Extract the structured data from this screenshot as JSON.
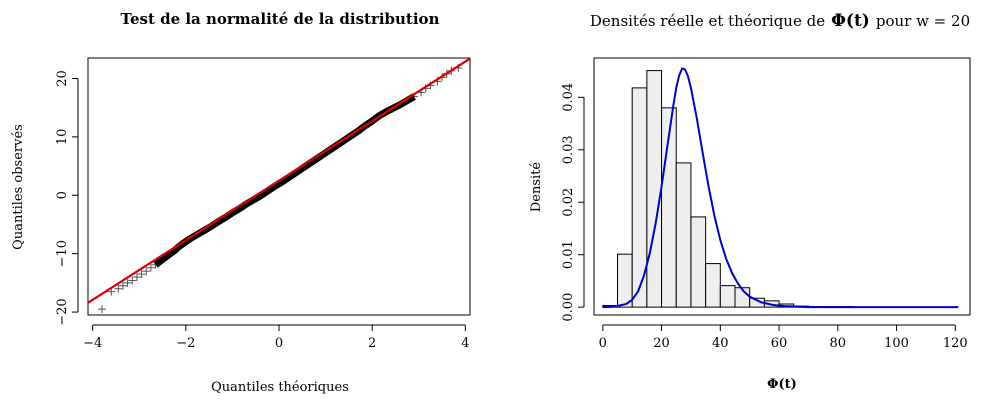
{
  "chart_data": [
    {
      "type": "scatter",
      "title": "Test de la normalité de la distribution",
      "xlabel": "Quantiles théoriques",
      "ylabel": "Quantiles observés",
      "xlim": [
        -4.1,
        4.1
      ],
      "ylim": [
        -20.5,
        23.5
      ],
      "xticks": [
        -4,
        -2,
        0,
        2,
        4
      ],
      "yticks": [
        -20,
        -10,
        0,
        10,
        20
      ],
      "xtick_labels": [
        "−4",
        "−2",
        "0",
        "2",
        "4"
      ],
      "ytick_labels": [
        "−20",
        "−10",
        "0",
        "10",
        "20"
      ],
      "marker": "+",
      "point_color": "#555555",
      "line": {
        "label": "",
        "intercept": 2.5,
        "slope": 5.1,
        "color": "#dd0000"
      },
      "points": [
        [
          -3.8,
          -19.5
        ],
        [
          -3.6,
          -16.5
        ],
        [
          -3.45,
          -16.0
        ],
        [
          -3.35,
          -15.5
        ],
        [
          -3.25,
          -15.0
        ],
        [
          -3.15,
          -14.6
        ],
        [
          -3.05,
          -14.0
        ],
        [
          -2.95,
          -13.5
        ],
        [
          -2.85,
          -13.0
        ],
        [
          -2.75,
          -12.4
        ],
        [
          -2.65,
          -11.9
        ],
        [
          -2.55,
          -11.3
        ],
        [
          -2.45,
          -10.7
        ],
        [
          -2.35,
          -10.1
        ],
        [
          -2.25,
          -9.5
        ],
        [
          -2.15,
          -8.8
        ],
        [
          -2.05,
          -8.2
        ],
        [
          -1.9,
          -7.4
        ],
        [
          -1.75,
          -6.7
        ],
        [
          -1.6,
          -6.0
        ],
        [
          -1.45,
          -5.3
        ],
        [
          -1.3,
          -4.5
        ],
        [
          -1.15,
          -3.8
        ],
        [
          -1.0,
          -3.0
        ],
        [
          -0.85,
          -2.3
        ],
        [
          -0.7,
          -1.5
        ],
        [
          -0.55,
          -0.8
        ],
        [
          -0.4,
          -0.1
        ],
        [
          -0.25,
          0.7
        ],
        [
          -0.1,
          1.5
        ],
        [
          0.05,
          2.2
        ],
        [
          0.2,
          3.0
        ],
        [
          0.35,
          3.8
        ],
        [
          0.5,
          4.6
        ],
        [
          0.65,
          5.4
        ],
        [
          0.8,
          6.2
        ],
        [
          0.95,
          7.0
        ],
        [
          1.1,
          7.8
        ],
        [
          1.25,
          8.6
        ],
        [
          1.4,
          9.4
        ],
        [
          1.55,
          10.2
        ],
        [
          1.7,
          11.0
        ],
        [
          1.85,
          11.9
        ],
        [
          2.0,
          12.7
        ],
        [
          2.15,
          13.6
        ],
        [
          2.3,
          14.3
        ],
        [
          2.45,
          14.9
        ],
        [
          2.6,
          15.5
        ],
        [
          2.75,
          16.2
        ],
        [
          2.9,
          16.9
        ],
        [
          3.05,
          17.6
        ],
        [
          3.15,
          18.3
        ],
        [
          3.25,
          18.8
        ],
        [
          3.4,
          19.5
        ],
        [
          3.5,
          20.2
        ],
        [
          3.6,
          20.8
        ],
        [
          3.7,
          21.3
        ],
        [
          3.85,
          21.8
        ]
      ]
    },
    {
      "type": "bar",
      "title": "Densités réelle et théorique de",
      "title_math": "Φ(t)",
      "title_suffix": "pour w = 20",
      "xlabel": "Φ(t)",
      "ylabel": "Densité",
      "xlim": [
        -3,
        125
      ],
      "ylim": [
        -0.0015,
        0.0475
      ],
      "xticks": [
        0,
        20,
        40,
        60,
        80,
        100,
        120
      ],
      "xtick_labels": [
        "0",
        "20",
        "40",
        "60",
        "80",
        "100",
        "120"
      ],
      "yticks": [
        0,
        0.01,
        0.02,
        0.03,
        0.04
      ],
      "ytick_labels": [
        "0.00",
        "0.01",
        "0.02",
        "0.03",
        "0.04"
      ],
      "bar_fill": "#eeeeee",
      "bins": [
        [
          0,
          5,
          0.0003
        ],
        [
          5,
          10,
          0.0101
        ],
        [
          10,
          15,
          0.0418
        ],
        [
          15,
          20,
          0.0451
        ],
        [
          20,
          25,
          0.038
        ],
        [
          25,
          30,
          0.0275
        ],
        [
          30,
          35,
          0.0172
        ],
        [
          35,
          40,
          0.0083
        ],
        [
          40,
          45,
          0.0041
        ],
        [
          45,
          50,
          0.0037
        ],
        [
          50,
          55,
          0.0017
        ],
        [
          55,
          60,
          0.0012
        ],
        [
          60,
          65,
          0.0006
        ],
        [
          65,
          70,
          0.0002
        ],
        [
          70,
          75,
          0.0001
        ],
        [
          75,
          80,
          0.0001
        ],
        [
          80,
          85,
          0.0001
        ]
      ],
      "curve": {
        "label": "",
        "color": "#0000cc",
        "points": [
          [
            0,
            0.0
          ],
          [
            4,
            0.0001
          ],
          [
            8,
            0.0006
          ],
          [
            10,
            0.0014
          ],
          [
            12,
            0.003
          ],
          [
            14,
            0.006
          ],
          [
            16,
            0.0103
          ],
          [
            18,
            0.016
          ],
          [
            20,
            0.023
          ],
          [
            22,
            0.0308
          ],
          [
            24,
            0.0384
          ],
          [
            25,
            0.0418
          ],
          [
            26,
            0.0442
          ],
          [
            27,
            0.0455
          ],
          [
            28,
            0.0453
          ],
          [
            29,
            0.044
          ],
          [
            30,
            0.0418
          ],
          [
            32,
            0.036
          ],
          [
            34,
            0.0294
          ],
          [
            36,
            0.023
          ],
          [
            38,
            0.0174
          ],
          [
            40,
            0.0128
          ],
          [
            42,
            0.0092
          ],
          [
            44,
            0.0065
          ],
          [
            46,
            0.0045
          ],
          [
            48,
            0.003
          ],
          [
            50,
            0.002
          ],
          [
            54,
            0.0009
          ],
          [
            58,
            0.0004
          ],
          [
            62,
            0.0002
          ],
          [
            66,
            0.0001
          ],
          [
            70,
            0.0
          ],
          [
            80,
            0.0
          ],
          [
            90,
            0.0
          ],
          [
            100,
            0.0
          ],
          [
            110,
            0.0
          ],
          [
            121,
            0.0
          ]
        ]
      }
    }
  ]
}
